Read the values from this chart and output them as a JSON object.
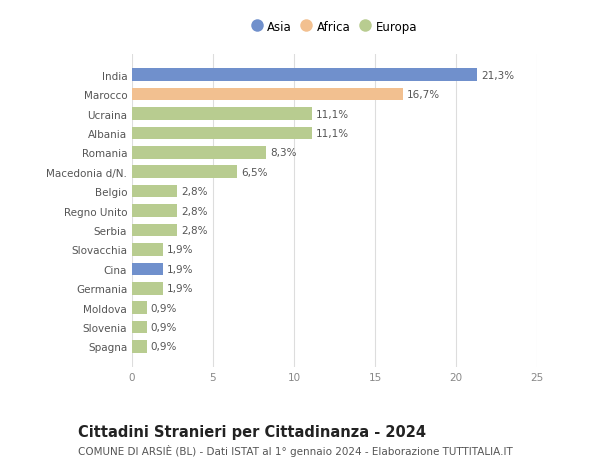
{
  "categories": [
    "India",
    "Marocco",
    "Ucraina",
    "Albania",
    "Romania",
    "Macedonia d/N.",
    "Belgio",
    "Regno Unito",
    "Serbia",
    "Slovacchia",
    "Cina",
    "Germania",
    "Moldova",
    "Slovenia",
    "Spagna"
  ],
  "values": [
    21.3,
    16.7,
    11.1,
    11.1,
    8.3,
    6.5,
    2.8,
    2.8,
    2.8,
    1.9,
    1.9,
    1.9,
    0.9,
    0.9,
    0.9
  ],
  "labels": [
    "21,3%",
    "16,7%",
    "11,1%",
    "11,1%",
    "8,3%",
    "6,5%",
    "2,8%",
    "2,8%",
    "2,8%",
    "1,9%",
    "1,9%",
    "1,9%",
    "0,9%",
    "0,9%",
    "0,9%"
  ],
  "continents": [
    "Asia",
    "Africa",
    "Europa",
    "Europa",
    "Europa",
    "Europa",
    "Europa",
    "Europa",
    "Europa",
    "Europa",
    "Asia",
    "Europa",
    "Europa",
    "Europa",
    "Europa"
  ],
  "colors": {
    "Asia": "#7090cc",
    "Africa": "#f2c090",
    "Europa": "#b8cc90"
  },
  "legend": [
    {
      "label": "Asia",
      "color": "#7090cc"
    },
    {
      "label": "Africa",
      "color": "#f2c090"
    },
    {
      "label": "Europa",
      "color": "#b8cc90"
    }
  ],
  "xlim": [
    0,
    25
  ],
  "xticks": [
    0,
    5,
    10,
    15,
    20,
    25
  ],
  "title": "Cittadini Stranieri per Cittadinanza - 2024",
  "subtitle": "COMUNE DI ARSIÈ (BL) - Dati ISTAT al 1° gennaio 2024 - Elaborazione TUTTITALIA.IT",
  "background_color": "#ffffff",
  "grid_color": "#dddddd",
  "bar_height": 0.65,
  "title_fontsize": 10.5,
  "subtitle_fontsize": 7.5,
  "label_fontsize": 7.5,
  "tick_fontsize": 7.5,
  "legend_fontsize": 8.5
}
